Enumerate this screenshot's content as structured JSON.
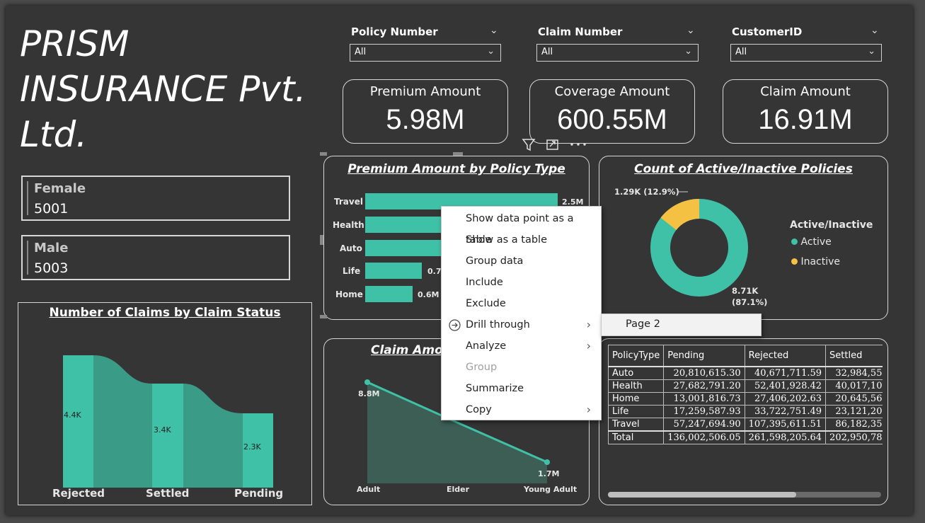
{
  "company": {
    "line1": "PRISM",
    "line2": "INSURANCE Pvt.",
    "line3": "Ltd."
  },
  "gender": [
    {
      "label": "Female",
      "value": "5001"
    },
    {
      "label": "Male",
      "value": "5003"
    }
  ],
  "slicers": [
    {
      "title": "Policy Number",
      "value": "All"
    },
    {
      "title": "Claim Number",
      "value": "All"
    },
    {
      "title": "CustomerID",
      "value": "All"
    }
  ],
  "kpis": [
    {
      "title": "Premium Amount",
      "value": "5.98M"
    },
    {
      "title": "Coverage Amount",
      "value": "600.55M"
    },
    {
      "title": "Claim Amount",
      "value": "16.91M"
    }
  ],
  "claims_status_chart": {
    "title": "Number of Claims by Claim Status",
    "categories": [
      "Rejected",
      "Settled",
      "Pending"
    ],
    "labels": [
      "4.4K",
      "3.4K",
      "2.3K"
    ],
    "values": [
      4.4,
      3.4,
      2.3
    ],
    "color": "#3fc1a7"
  },
  "premium_by_type_chart": {
    "title": "Premium Amount by Policy Type",
    "categories": [
      "Travel",
      "Health",
      "Auto",
      "Life",
      "Home"
    ],
    "labels": [
      "2.5M",
      "",
      "",
      "0.7",
      "0.6M"
    ]
  },
  "active_inactive_chart": {
    "title": "Count of Active/Inactive Policies",
    "legend_title": "Active/Inactive",
    "legend": [
      {
        "name": "Active",
        "color": "#3fc1a7"
      },
      {
        "name": "Inactive",
        "color": "#f5c142"
      }
    ],
    "label_inactive": "1.29K (12.9%)",
    "label_active_1": "8.71K",
    "label_active_2": "(87.1%)"
  },
  "claim_amount_chart": {
    "title": "Claim Amou",
    "categories": [
      "Adult",
      "Elder",
      "Young Adult"
    ],
    "point_labels": [
      "8.8M",
      "1.7M"
    ]
  },
  "matrix": {
    "headers": [
      "PolicyType",
      "Pending",
      "Rejected",
      "Settled"
    ],
    "rows": [
      [
        "Auto",
        "20,810,615.30",
        "40,671,711.59",
        "32,984,55"
      ],
      [
        "Health",
        "27,682,791.20",
        "52,401,928.42",
        "40,017,10"
      ],
      [
        "Home",
        "13,001,816.73",
        "27,406,202.63",
        "20,645,56"
      ],
      [
        "Life",
        "17,259,587.93",
        "33,722,751.49",
        "23,121,20"
      ],
      [
        "Travel",
        "57,247,694.90",
        "107,395,611.51",
        "86,182,35"
      ]
    ],
    "total": [
      "Total",
      "136,002,506.05",
      "261,598,205.64",
      "202,950,78"
    ]
  },
  "context_menu": {
    "items": [
      {
        "label": "Show data point as a table"
      },
      {
        "label": "Show as a table"
      },
      {
        "label": "Group data"
      },
      {
        "label": "Include"
      },
      {
        "label": "Exclude"
      },
      {
        "label": "Drill through"
      },
      {
        "label": "Analyze"
      },
      {
        "label": "Group"
      },
      {
        "label": "Summarize"
      },
      {
        "label": "Copy"
      }
    ],
    "submenu_item": "Page 2"
  },
  "colors": {
    "accent": "#3fc1a7",
    "accent_dark": "#3a9b87",
    "background": "#353535",
    "inactive": "#f5c142"
  }
}
